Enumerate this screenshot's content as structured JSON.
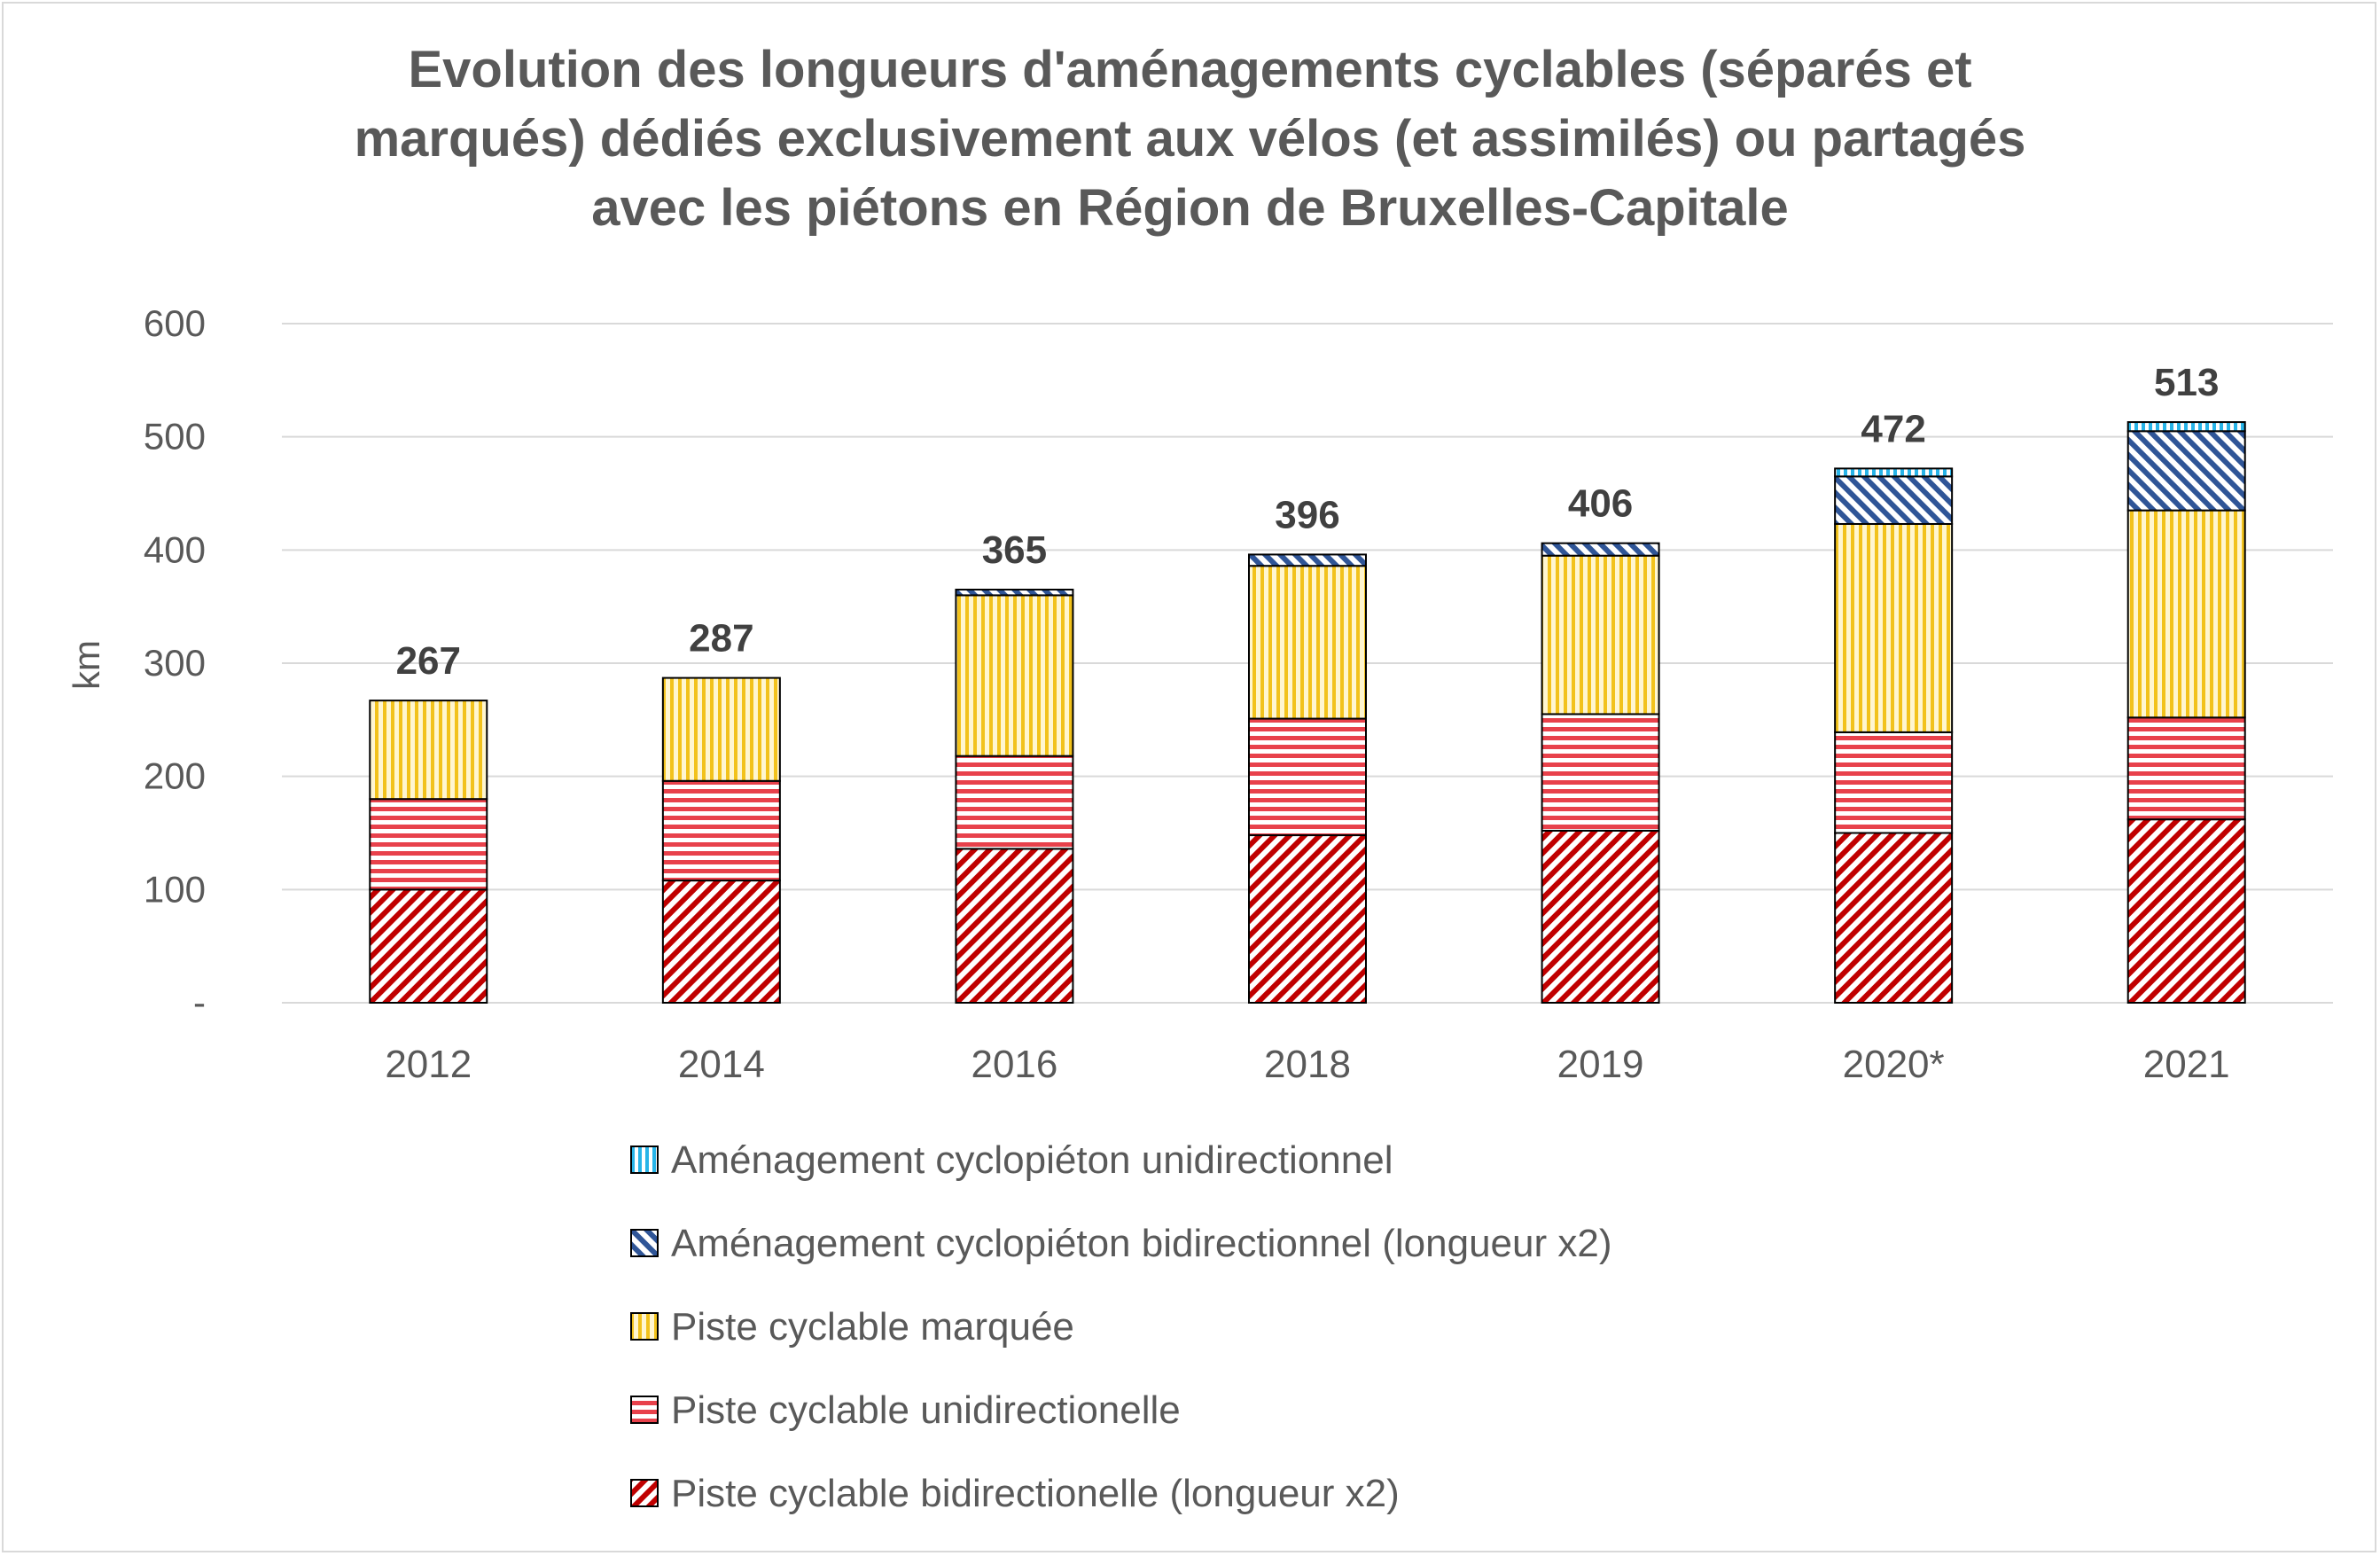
{
  "chart_data": {
    "type": "bar",
    "stacked": true,
    "title": "Evolution des longueurs d'aménagements cyclables (séparés et\nmarqués) dédiés exclusivement aux vélos (et assimilés) ou partagés\navec les piétons en Région de Bruxelles-Capitale",
    "xlabel": "",
    "ylabel": "km",
    "ylim": [
      0,
      600
    ],
    "yticks": [
      0,
      100,
      200,
      300,
      400,
      500,
      600
    ],
    "ytick_labels": [
      "-",
      "100",
      "200",
      "300",
      "400",
      "500",
      "600"
    ],
    "grid": true,
    "legend_position": "bottom",
    "categories": [
      "2012",
      "2014",
      "2016",
      "2018",
      "2019",
      "2020*",
      "2021"
    ],
    "totals": [
      267,
      287,
      365,
      396,
      406,
      472,
      513
    ],
    "series": [
      {
        "name": "Piste cyclable bidirectionelle (longueur x2)",
        "values": [
          100,
          108,
          136,
          148,
          152,
          150,
          162
        ],
        "color": "#c00000",
        "pattern": "diagonal"
      },
      {
        "name": "Piste cyclable unidirectionelle",
        "values": [
          80,
          88,
          82,
          103,
          103,
          89,
          90
        ],
        "color": "#e8414b",
        "pattern": "horizontal"
      },
      {
        "name": "Piste cyclable marquée",
        "values": [
          87,
          91,
          142,
          135,
          140,
          184,
          183
        ],
        "color": "#f2c21c",
        "pattern": "vertical"
      },
      {
        "name": "Aménagement cyclopiéton bidirectionnel (longueur x2)",
        "values": [
          0,
          0,
          5,
          10,
          11,
          42,
          70
        ],
        "color": "#2f5597",
        "pattern": "diagonal-up"
      },
      {
        "name": "Aménagement cyclopiéton unidirectionnel",
        "values": [
          0,
          0,
          0,
          0,
          0,
          7,
          8
        ],
        "color": "#28b4e8",
        "pattern": "vertical"
      }
    ]
  }
}
